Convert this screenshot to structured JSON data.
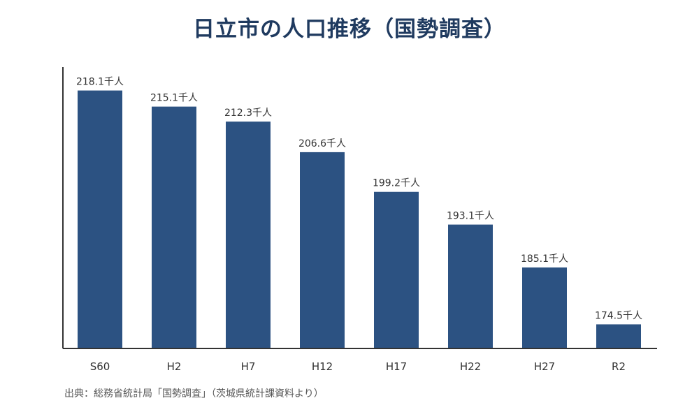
{
  "chart_data": {
    "type": "bar",
    "title": "日立市の人口推移（国勢調査）",
    "categories": [
      "S60",
      "H2",
      "H7",
      "H12",
      "H17",
      "H22",
      "H27",
      "R2"
    ],
    "values": [
      218.1,
      215.1,
      212.3,
      206.6,
      199.2,
      193.1,
      185.1,
      174.5
    ],
    "value_labels": [
      "218.1千人",
      "215.1千人",
      "212.3千人",
      "206.6千人",
      "199.2千人",
      "193.1千人",
      "185.1千人",
      "174.5千人"
    ],
    "xlabel": "",
    "ylabel": "",
    "ylim": [
      170,
      220
    ],
    "grid": false,
    "bar_color": "#2c5282",
    "axis_color": "#333333"
  },
  "source": "出典：総務省統計局「国勢調査」（茨城県統計課資料より）"
}
